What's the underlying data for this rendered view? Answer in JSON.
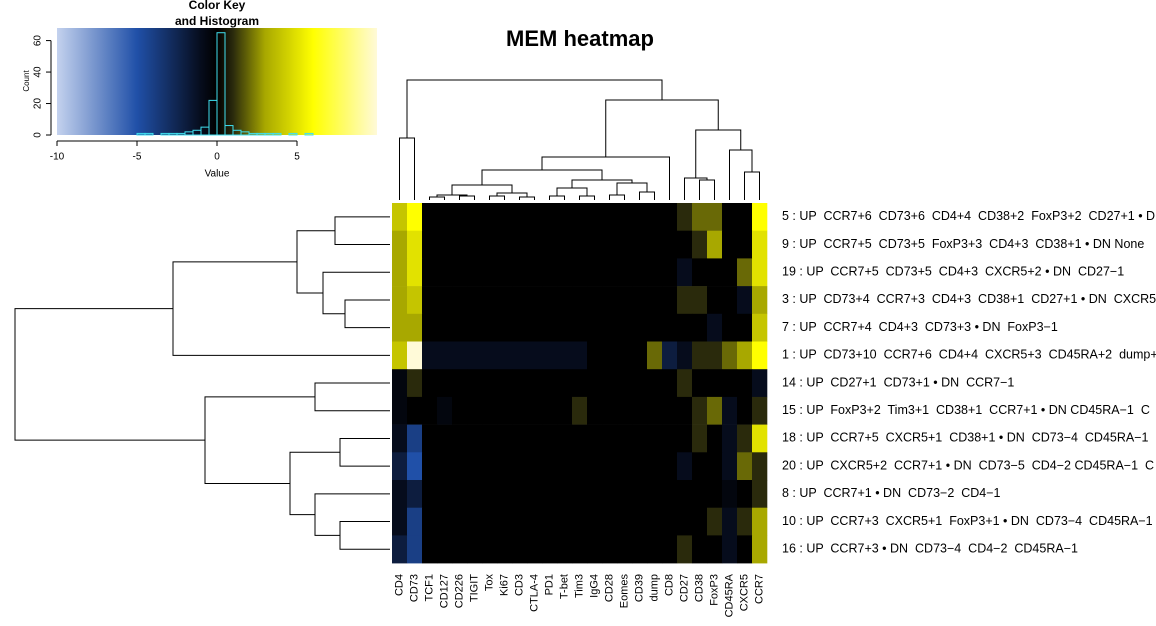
{
  "chart_data": [
    {
      "type": "histogram",
      "title": [
        "Color Key",
        "and Histogram"
      ],
      "x_label": "Value",
      "y_label": "Count",
      "bins": [
        -10,
        -9.5,
        -9,
        -8.5,
        -8,
        -7.5,
        -7,
        -6.5,
        -6,
        -5.5,
        -5,
        -4.5,
        -4,
        -3.5,
        -3,
        -2.5,
        -2,
        -1.5,
        -1,
        -0.5,
        0,
        0.5,
        1,
        1.5,
        2,
        2.5,
        3,
        3.5,
        4,
        4.5,
        5,
        5.5,
        6,
        6.5,
        7,
        7.5,
        8,
        8.5,
        9,
        9.5,
        10
      ],
      "values": [
        0,
        0,
        0,
        0,
        0,
        0,
        0,
        0,
        0,
        0,
        1,
        1,
        0,
        1,
        1,
        1,
        2,
        3,
        5,
        22,
        65,
        6,
        3,
        2,
        1,
        1,
        1,
        1,
        0,
        1,
        0,
        1,
        0,
        0,
        0,
        0,
        0,
        0,
        0,
        0
      ],
      "color": "#40e0f0",
      "xlim": [
        -10,
        10
      ],
      "xticks": [
        -10,
        -5,
        0,
        5
      ],
      "ylim": [
        0,
        68
      ],
      "yticks": [
        0,
        20,
        40,
        60
      ]
    },
    {
      "type": "heatmap",
      "title": "MEM heatmap",
      "columns": [
        "CD4",
        "CD73",
        "TCF1",
        "CD127",
        "CD226",
        "TIGIT",
        "Tox",
        "Ki67",
        "CD3",
        "CTLA-4",
        "PD1",
        "T-bet",
        "Tim3",
        "IgG4",
        "CD28",
        "Eomes",
        "CD39",
        "dump",
        "CD8",
        "CD27",
        "CD38",
        "FoxP3",
        "CD45RA",
        "CXCR5",
        "CCR7"
      ],
      "rows": [
        "5 : UP  CCR7+6  CD73+6  CD4+4  CD38+2  FoxP3+2  CD27+1 • D",
        "9 : UP  CCR7+5  CD73+5  FoxP3+3  CD4+3  CD38+1 • DN None",
        "19 : UP  CCR7+5  CD73+5  CD4+3  CXCR5+2 • DN  CD27−1",
        "3 : UP  CD73+4  CCR7+3  CD4+3  CD38+1  CD27+1 • DN  CXCR5",
        "7 : UP  CCR7+4  CD4+3  CD73+3 • DN  FoxP3−1",
        "1 : UP  CD73+10  CCR7+6  CD4+4  CXCR5+3  CD45RA+2  dump+",
        "14 : UP  CD27+1  CD73+1 • DN  CCR7−1",
        "15 : UP  FoxP3+2  Tim3+1  CD38+1  CCR7+1 • DN CD45RA−1  C",
        "18 : UP  CCR7+5  CXCR5+1  CD38+1 • DN  CD73−4  CD45RA−1",
        "20 : UP  CXCR5+2  CCR7+1 • DN  CD73−5  CD4−2 CD45RA−1  C",
        "8 : UP  CCR7+1 • DN  CD73−2  CD4−1",
        "10 : UP  CCR7+3  CXCR5+1  FoxP3+1 • DN  CD73−4  CD45RA−1",
        "16 : UP  CCR7+3 • DN  CD73−4  CD4−2  CD45RA−1"
      ],
      "values": [
        [
          4,
          6,
          0,
          0,
          0,
          0,
          0,
          0,
          0,
          0,
          0,
          0,
          0,
          0,
          0,
          0,
          0,
          0,
          0,
          1,
          2,
          2,
          0,
          0,
          6
        ],
        [
          3,
          5,
          0,
          0,
          0,
          0,
          0,
          0,
          0,
          0,
          0,
          0,
          0,
          0,
          0,
          0,
          0,
          0,
          0,
          0,
          1,
          3,
          0,
          0,
          5
        ],
        [
          3,
          5,
          0,
          0,
          0,
          0,
          0,
          0,
          0,
          0,
          0,
          0,
          0,
          0,
          0,
          0,
          0,
          0,
          0,
          -1,
          0,
          0,
          0,
          2,
          5
        ],
        [
          3,
          4,
          0,
          0,
          0,
          0,
          0,
          0,
          0,
          0,
          0,
          0,
          0,
          0,
          0,
          0,
          0,
          0,
          0,
          1,
          1,
          0,
          0,
          -1,
          3
        ],
        [
          3,
          3,
          0,
          0,
          0,
          0,
          0,
          0,
          0,
          0,
          0,
          0,
          0,
          0,
          0,
          0,
          0,
          0,
          0,
          0,
          0,
          -1,
          0,
          0,
          4
        ],
        [
          4,
          10,
          -1,
          -1,
          -1,
          -1,
          -1,
          -1,
          -1,
          -1,
          -1,
          -1,
          -1,
          0,
          0,
          0,
          0,
          2,
          -2,
          -1,
          1,
          1,
          2,
          3,
          6
        ],
        [
          -0.5,
          1,
          0,
          0,
          0,
          0,
          0,
          0,
          0,
          0,
          0,
          0,
          0,
          0,
          0,
          0,
          0,
          0,
          0,
          1,
          0,
          0,
          0,
          0,
          -1
        ],
        [
          -0.5,
          0,
          0,
          -0.5,
          0,
          0,
          0,
          0,
          0,
          0,
          0,
          0,
          1,
          0,
          0,
          0,
          0,
          0,
          0,
          0,
          1,
          2,
          -1,
          0,
          1
        ],
        [
          -1,
          -4,
          0,
          0,
          0,
          0,
          0,
          0,
          0,
          0,
          0,
          0,
          0,
          0,
          0,
          0,
          0,
          0,
          0,
          0,
          1,
          0,
          -1,
          1,
          5
        ],
        [
          -2,
          -5,
          0,
          0,
          0,
          0,
          0,
          0,
          0,
          0,
          0,
          0,
          0,
          0,
          0,
          0,
          0,
          0,
          0,
          -1,
          0,
          0,
          -1,
          2,
          1
        ],
        [
          -1,
          -2,
          0,
          0,
          0,
          0,
          0,
          0,
          0,
          0,
          0,
          0,
          0,
          0,
          0,
          0,
          0,
          0,
          0,
          0,
          0,
          0,
          -0.5,
          0,
          1
        ],
        [
          -1,
          -4,
          0,
          0,
          0,
          0,
          0,
          0,
          0,
          0,
          0,
          0,
          0,
          0,
          0,
          0,
          0,
          0,
          0,
          0,
          0,
          1,
          -1,
          1,
          3
        ],
        [
          -2,
          -4,
          0,
          0,
          0,
          0,
          0,
          0,
          0,
          0,
          0,
          0,
          0,
          0,
          0,
          0,
          0,
          0,
          0,
          1,
          0,
          0,
          -1,
          0,
          3
        ]
      ],
      "colorscale": [
        [
          -10,
          "#c4d2ee"
        ],
        [
          -5,
          "#2050a8"
        ],
        [
          -1,
          "#060c1c"
        ],
        [
          0,
          "#000000"
        ],
        [
          1,
          "#2a2a0c"
        ],
        [
          3,
          "#a8a800"
        ],
        [
          6,
          "#ffff00"
        ],
        [
          10,
          "#fffad8"
        ]
      ]
    }
  ]
}
